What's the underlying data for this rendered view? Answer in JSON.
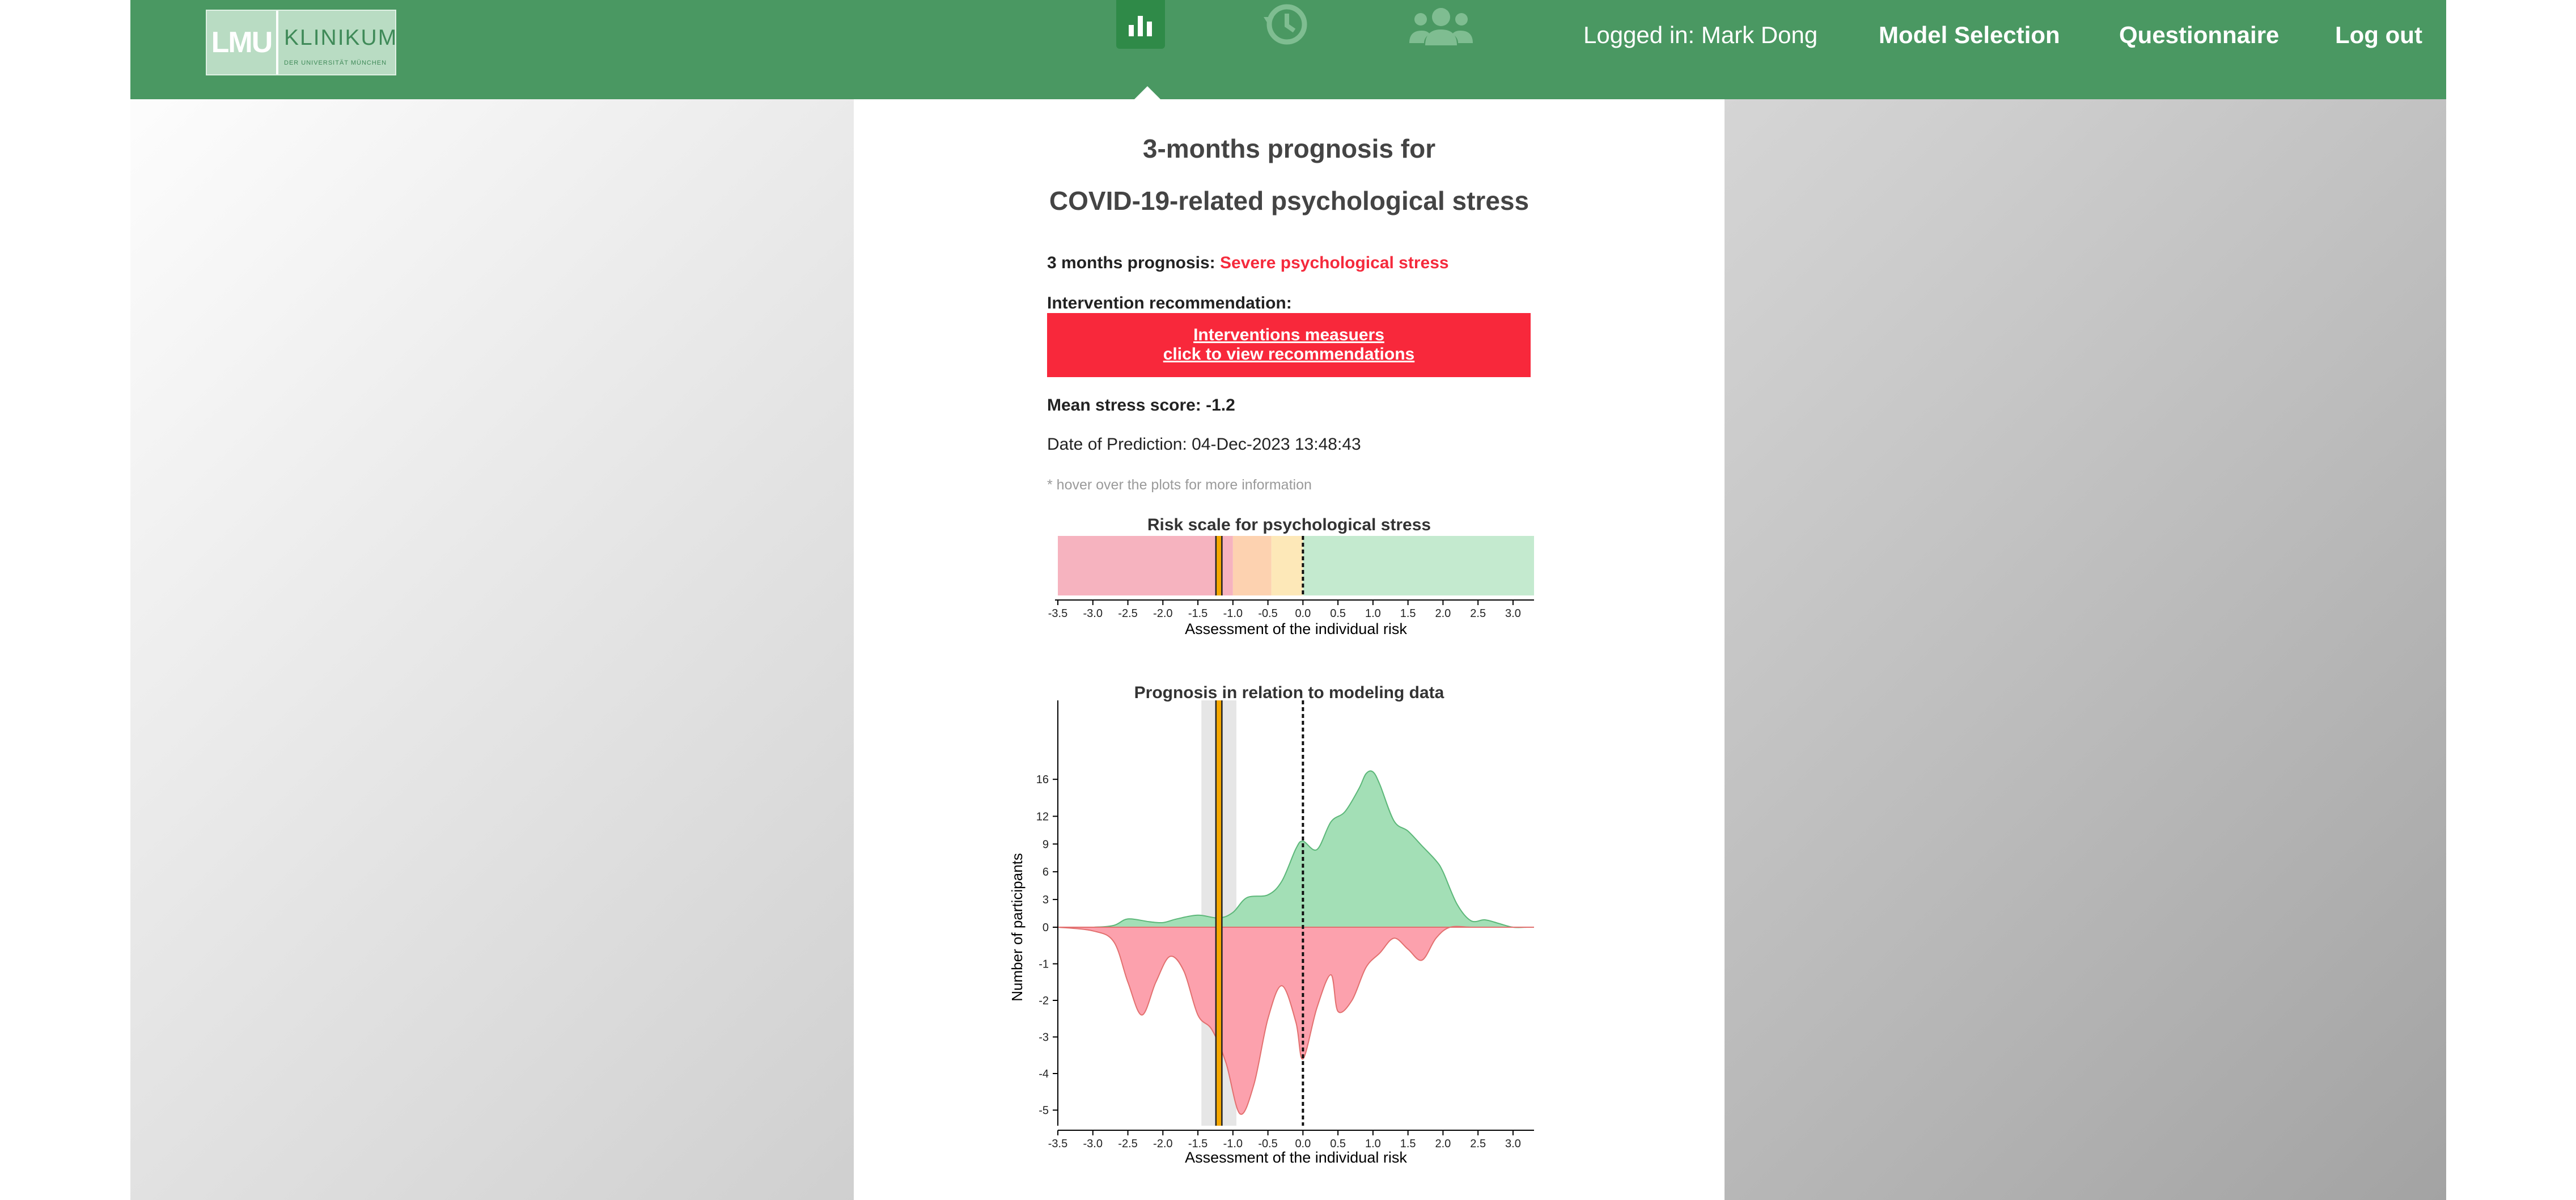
{
  "header": {
    "logo_left": "LMU",
    "logo_right": "KLINIKUM",
    "logo_sub": "DER UNIVERSITÄT MÜNCHEN",
    "nav_icons": [
      "bar-chart-icon",
      "history-icon",
      "users-icon"
    ],
    "logged_in": "Logged in: Mark Dong",
    "model_selection": "Model Selection",
    "questionnaire": "Questionnaire",
    "logout": "Log out",
    "bar_color": "#4a9862"
  },
  "main": {
    "title_line1": "3-months prognosis for",
    "title_line2": "COVID-19-related psychological stress",
    "prognosis_label": "3 months prognosis:",
    "prognosis_value": "Severe psychological stress",
    "intervention_label": "Intervention recommendation:",
    "intervention_line1": "Interventions measuers",
    "intervention_line2": "click to view recommendations",
    "mean_score_label": "Mean stress score: -1.2",
    "prediction_date": "Date of Prediction: 04-Dec-2023 13:48:43",
    "hover_hint": "* hover over the plots for more information",
    "accent_red": "#f52a3c"
  },
  "chart_data": [
    {
      "type": "bar",
      "title": "Risk scale for psychological stress",
      "xlabel": "Assessment of the individual risk",
      "xlim": [
        -3.5,
        3.3
      ],
      "ticks": [
        "-3.5",
        "-3.0",
        "-2.5",
        "-2.0",
        "-1.5",
        "-1.0",
        "-0.5",
        "0.0",
        "0.5",
        "1.0",
        "1.5",
        "2.0",
        "2.5",
        "3.0"
      ],
      "bands": [
        {
          "from": -3.5,
          "to": -1.0,
          "color": "#f6b3bf"
        },
        {
          "from": -1.0,
          "to": -0.45,
          "color": "#fdd2b0"
        },
        {
          "from": -0.45,
          "to": 0.0,
          "color": "#fde8b8"
        },
        {
          "from": 0.0,
          "to": 3.3,
          "color": "#c4eacf"
        }
      ],
      "marker_value": -1.2,
      "threshold": 0.0
    },
    {
      "type": "area",
      "title": "Prognosis in relation to modeling data",
      "xlabel": "Assessment of the individual risk",
      "ylabel": "Number of participants",
      "xlim": [
        -3.5,
        3.3
      ],
      "xticks": [
        "-3.5",
        "-3.0",
        "-2.5",
        "-2.0",
        "-1.5",
        "-1.0",
        "-0.5",
        "0.0",
        "0.5",
        "1.0",
        "1.5",
        "2.0",
        "2.5",
        "3.0"
      ],
      "yticks": [
        "16",
        "12",
        "9",
        "6",
        "3",
        "0",
        "-1",
        "-2",
        "-3",
        "-4",
        "-5"
      ],
      "series": [
        {
          "color": "#a3dfb6",
          "x": [
            -3.5,
            -3.0,
            -2.7,
            -2.5,
            -2.2,
            -2.0,
            -1.8,
            -1.5,
            -1.2,
            -1.0,
            -0.8,
            -0.5,
            -0.3,
            -0.1,
            0.0,
            0.2,
            0.4,
            0.6,
            0.8,
            0.9,
            1.0,
            1.1,
            1.3,
            1.5,
            1.7,
            1.9,
            2.0,
            2.2,
            2.4,
            2.6,
            2.8,
            3.0,
            3.2
          ],
          "values": [
            0,
            0,
            0.2,
            0.9,
            0.6,
            0.5,
            0.9,
            1.3,
            1.0,
            1.6,
            3.2,
            3.5,
            5.0,
            8.5,
            9.3,
            8.4,
            11.4,
            12.5,
            15.0,
            16.6,
            16.8,
            15.4,
            11.5,
            10.4,
            8.8,
            7.2,
            6.0,
            2.5,
            0.7,
            0.8,
            0.4,
            0,
            0
          ]
        },
        {
          "color": "#fca1ad",
          "x": [
            -3.5,
            -3.0,
            -2.7,
            -2.5,
            -2.3,
            -2.1,
            -1.9,
            -1.7,
            -1.5,
            -1.3,
            -1.1,
            -0.9,
            -0.7,
            -0.5,
            -0.3,
            -0.1,
            0.0,
            0.2,
            0.4,
            0.5,
            0.7,
            0.9,
            1.1,
            1.3,
            1.5,
            1.7,
            1.9,
            2.1,
            2.4,
            2.7,
            3.0,
            3.2
          ],
          "values": [
            0,
            -0.1,
            -0.4,
            -1.5,
            -2.4,
            -1.5,
            -0.8,
            -1.2,
            -2.4,
            -2.8,
            -3.7,
            -5.1,
            -4.3,
            -2.5,
            -1.6,
            -2.6,
            -3.6,
            -2.2,
            -1.3,
            -2.3,
            -2.0,
            -1.1,
            -0.7,
            -0.3,
            -0.6,
            -0.9,
            -0.3,
            0,
            0,
            0,
            0,
            0
          ]
        }
      ],
      "marker_value": -1.2,
      "uncertainty_band": [
        -1.45,
        -0.95
      ],
      "threshold": 0.0
    }
  ]
}
